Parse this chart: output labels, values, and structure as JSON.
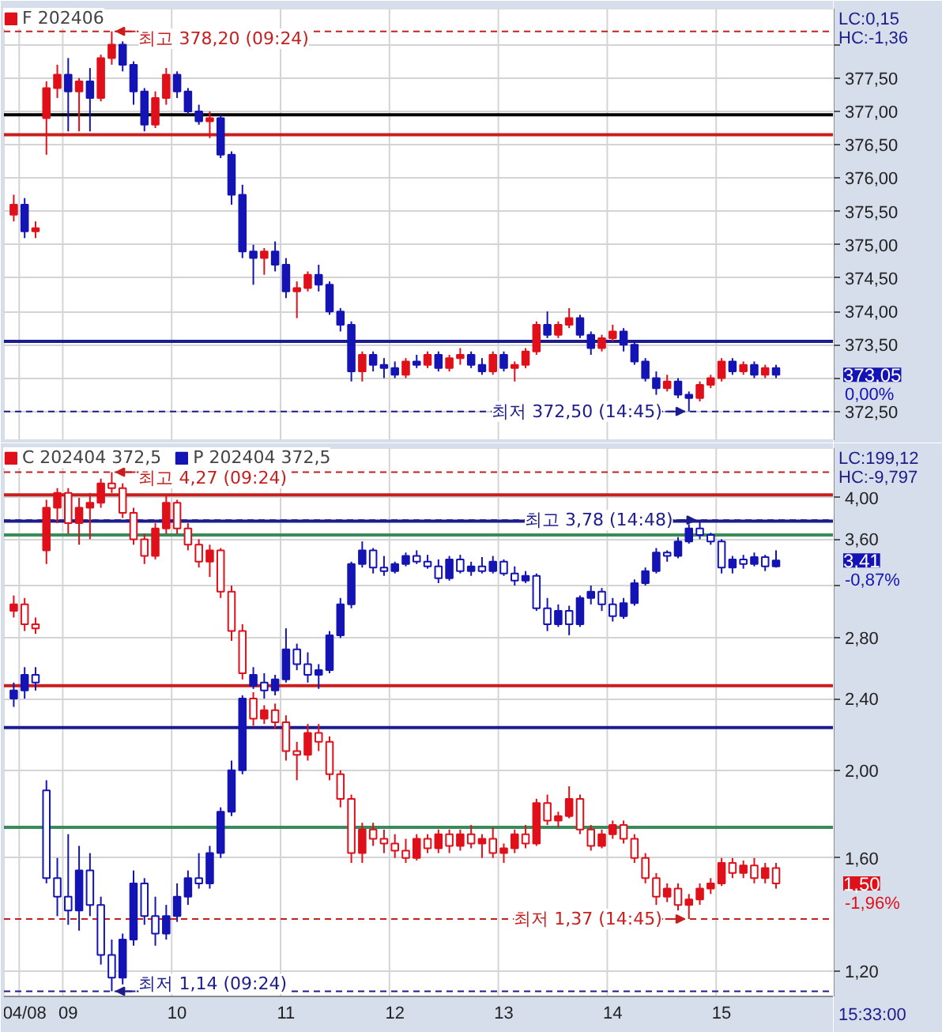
{
  "chart_data": [
    {
      "type": "candlestick",
      "legend": "top left",
      "grid": true,
      "tick_labels": "y",
      "categories": [
        null,
        null,
        null,
        null,
        null,
        null,
        null,
        null,
        null,
        null,
        null,
        null,
        null,
        null,
        null,
        null,
        null,
        null,
        null,
        null,
        null,
        null,
        null,
        null,
        null,
        null,
        null,
        null,
        null,
        null,
        null,
        null,
        null,
        null,
        null,
        null,
        null,
        null,
        null,
        null,
        null,
        null,
        null,
        null,
        null,
        null,
        null,
        null,
        null,
        null,
        null,
        null,
        null,
        null,
        null,
        null,
        null,
        null,
        null,
        null,
        null,
        null,
        null,
        null,
        null,
        null,
        null,
        null,
        null,
        null,
        null
      ],
      "ylim": [
        372.07,
        378.54
      ],
      "yticks": [
        {
          "value": 372.5,
          "label": "372,50"
        },
        {
          "value": 373.0,
          "label": null
        },
        {
          "value": 373.5,
          "label": "373,50"
        },
        {
          "value": 374.0,
          "label": "374,00"
        },
        {
          "value": 374.5,
          "label": "374,50"
        },
        {
          "value": 375.0,
          "label": "375,00"
        },
        {
          "value": 375.5,
          "label": "375,50"
        },
        {
          "value": 376.0,
          "label": "376,00"
        },
        {
          "value": 376.5,
          "label": "376,50"
        },
        {
          "value": 377.0,
          "label": "377,00"
        },
        {
          "value": 377.5,
          "label": "377,50"
        },
        {
          "value": 378.0,
          "label": null
        }
      ],
      "series": [
        {
          "name": "F 202406",
          "colors": [
            "#e0101a",
            "#1414b4",
            "#e0101a",
            "#e0101a",
            "#e0101a",
            "#1414b4",
            "#e0101a",
            "#1414b4",
            "#e0101a",
            "#e0101a",
            "#1414b4",
            "#1414b4",
            "#1414b4",
            "#e0101a",
            "#e0101a",
            "#1414b4",
            "#1414b4",
            "#1414b4",
            "#e0101a",
            "#1414b4",
            "#1414b4",
            "#1414b4",
            "#1414b4",
            "#e0101a",
            "#1414b4",
            "#1414b4",
            "#e0101a",
            "#e0101a",
            "#1414b4",
            "#1414b4",
            "#1414b4",
            "#1414b4",
            "#e0101a",
            "#1414b4",
            "#1414b4",
            "#1414b4",
            "#e0101a",
            "#1414b4",
            "#e0101a",
            "#1414b4",
            "#e0101a",
            "#e0101a",
            "#1414b4",
            "#1414b4",
            "#e0101a",
            "#1414b4",
            "#e0101a",
            "#e0101a",
            "#e0101a",
            "#1414b4",
            "#e0101a",
            "#e0101a",
            "#1414b4",
            "#1414b4",
            "#e0101a",
            "#e0101a",
            "#1414b4",
            "#1414b4",
            "#1414b4",
            "#1414b4",
            "#e0101a",
            "#1414b4",
            "#1414b4",
            "#e0101a",
            "#e0101a",
            "#e0101a",
            "#1414b4",
            "#e0101a",
            "#1414b4",
            "#e0101a",
            "#1414b4"
          ],
          "ohlc": [
            [
              375.45,
              375.75,
              375.35,
              375.6
            ],
            [
              375.6,
              375.7,
              375.1,
              375.2
            ],
            [
              375.2,
              375.35,
              375.1,
              375.25
            ],
            [
              376.9,
              377.45,
              376.35,
              377.35
            ],
            [
              377.35,
              377.7,
              377.2,
              377.55
            ],
            [
              377.55,
              377.8,
              376.7,
              377.3
            ],
            [
              377.3,
              377.5,
              376.7,
              377.45
            ],
            [
              377.45,
              377.65,
              376.7,
              377.2
            ],
            [
              377.2,
              377.85,
              377.15,
              377.8
            ],
            [
              377.8,
              378.2,
              377.7,
              378.0
            ],
            [
              378.0,
              378.05,
              377.6,
              377.7
            ],
            [
              377.7,
              377.75,
              377.1,
              377.3
            ],
            [
              377.3,
              377.35,
              376.7,
              376.8
            ],
            [
              376.8,
              377.3,
              376.75,
              377.2
            ],
            [
              377.2,
              377.65,
              377.1,
              377.55
            ],
            [
              377.55,
              377.6,
              377.2,
              377.3
            ],
            [
              377.3,
              377.35,
              376.95,
              377.0
            ],
            [
              377.0,
              377.1,
              376.8,
              376.85
            ],
            [
              376.85,
              377.0,
              376.6,
              376.9
            ],
            [
              376.9,
              376.95,
              376.3,
              376.35
            ],
            [
              376.35,
              376.4,
              375.6,
              375.75
            ],
            [
              375.75,
              375.9,
              374.8,
              374.9
            ],
            [
              374.9,
              375.0,
              374.4,
              374.8
            ],
            [
              374.8,
              374.95,
              374.55,
              374.9
            ],
            [
              374.9,
              375.05,
              374.6,
              374.7
            ],
            [
              374.7,
              374.8,
              374.2,
              374.3
            ],
            [
              374.3,
              374.45,
              373.9,
              374.35
            ],
            [
              374.35,
              374.6,
              374.3,
              374.55
            ],
            [
              374.55,
              374.7,
              374.3,
              374.4
            ],
            [
              374.4,
              374.45,
              373.95,
              374.0
            ],
            [
              374.0,
              374.05,
              373.7,
              373.8
            ],
            [
              373.8,
              373.85,
              372.95,
              373.1
            ],
            [
              373.1,
              373.4,
              372.95,
              373.35
            ],
            [
              373.35,
              373.4,
              373.1,
              373.2
            ],
            [
              373.2,
              373.3,
              373.0,
              373.15
            ],
            [
              373.15,
              373.25,
              373.0,
              373.05
            ],
            [
              373.05,
              373.3,
              373.0,
              373.25
            ],
            [
              373.25,
              373.35,
              373.15,
              373.2
            ],
            [
              373.2,
              373.4,
              373.15,
              373.35
            ],
            [
              373.35,
              373.4,
              373.1,
              373.15
            ],
            [
              373.15,
              373.35,
              373.1,
              373.3
            ],
            [
              373.3,
              373.45,
              373.2,
              373.35
            ],
            [
              373.35,
              373.4,
              373.15,
              373.2
            ],
            [
              373.2,
              373.3,
              373.05,
              373.1
            ],
            [
              373.1,
              373.4,
              373.05,
              373.35
            ],
            [
              373.35,
              373.4,
              373.1,
              373.15
            ],
            [
              373.15,
              373.25,
              372.95,
              373.2
            ],
            [
              373.2,
              373.45,
              373.15,
              373.4
            ],
            [
              373.4,
              373.85,
              373.35,
              373.8
            ],
            [
              373.8,
              374.0,
              373.6,
              373.65
            ],
            [
              373.65,
              373.85,
              373.6,
              373.8
            ],
            [
              373.8,
              374.05,
              373.75,
              373.9
            ],
            [
              373.9,
              373.95,
              373.6,
              373.65
            ],
            [
              373.65,
              373.7,
              373.35,
              373.45
            ],
            [
              373.45,
              373.65,
              373.4,
              373.6
            ],
            [
              373.6,
              373.8,
              373.55,
              373.7
            ],
            [
              373.7,
              373.75,
              373.4,
              373.5
            ],
            [
              373.5,
              373.55,
              373.2,
              373.25
            ],
            [
              373.25,
              373.3,
              372.95,
              373.0
            ],
            [
              373.0,
              373.1,
              372.75,
              372.85
            ],
            [
              372.85,
              373.05,
              372.8,
              372.95
            ],
            [
              372.95,
              373.0,
              372.7,
              372.75
            ],
            [
              372.75,
              372.8,
              372.5,
              372.7
            ],
            [
              372.7,
              372.95,
              372.65,
              372.9
            ],
            [
              372.9,
              373.05,
              372.85,
              373.0
            ],
            [
              373.0,
              373.3,
              372.95,
              373.25
            ],
            [
              373.25,
              373.3,
              373.05,
              373.1
            ],
            [
              373.1,
              373.25,
              373.05,
              373.2
            ],
            [
              373.2,
              373.25,
              373.0,
              373.05
            ],
            [
              373.05,
              373.2,
              373.0,
              373.15
            ],
            [
              373.15,
              373.2,
              373.0,
              373.05
            ]
          ]
        }
      ],
      "ref_lines": [
        {
          "axis": "y",
          "value": 378.2,
          "color": "#c81e1e",
          "line_style": "dashed"
        },
        {
          "axis": "y",
          "value": 372.5,
          "color": "#1c1c8c",
          "line_style": "dashed"
        },
        {
          "axis": "y",
          "value": 376.95,
          "color": "#000000"
        },
        {
          "axis": "y",
          "value": 376.65,
          "color": "#c81e1e"
        },
        {
          "axis": "y",
          "value": 373.55,
          "color": "#1c1c8c"
        }
      ],
      "annotations": [
        "LC:0,15",
        "HC:-1,36",
        "373,05",
        "0,00%",
        {
          "text": "최고 378,20 (09:24)",
          "y": 378.2
        },
        {
          "text": "최저 372,50 (14:45)",
          "y": 372.5
        }
      ]
    },
    {
      "type": "candlestick",
      "legend": "top left",
      "grid": true,
      "log": "y",
      "categories": [
        null,
        "04/08",
        null,
        null,
        null,
        "09",
        null,
        null,
        null,
        null,
        null,
        null,
        null,
        null,
        null,
        "10",
        null,
        null,
        null,
        null,
        null,
        null,
        null,
        null,
        null,
        "11",
        null,
        null,
        null,
        null,
        null,
        null,
        null,
        null,
        null,
        "12",
        null,
        null,
        null,
        null,
        null,
        null,
        null,
        null,
        null,
        "13",
        null,
        null,
        null,
        null,
        null,
        null,
        null,
        null,
        null,
        "14",
        null,
        null,
        null,
        null,
        null,
        null,
        null,
        null,
        null,
        "15",
        null,
        null,
        null,
        null,
        null
      ],
      "ylim": [
        1.125,
        4.54
      ],
      "yticks": [
        {
          "value": 1.2,
          "label": "1,20"
        },
        {
          "value": 1.6,
          "label": "1,60"
        },
        {
          "value": 2.0,
          "label": "2,00"
        },
        {
          "value": 2.4,
          "label": "2,40"
        },
        {
          "value": 2.8,
          "label": "2,80"
        },
        {
          "value": 3.2,
          "label": null
        },
        {
          "value": 3.6,
          "label": "3,60"
        },
        {
          "value": 4.0,
          "label": "4,00"
        }
      ],
      "series": [
        {
          "name": "C 202404 372,5",
          "color": "#e0101a",
          "ohlc": [
            [
              3.0,
              3.12,
              2.95,
              3.05
            ],
            [
              3.05,
              3.1,
              2.85,
              2.9
            ],
            [
              2.9,
              2.95,
              2.83,
              2.87
            ],
            [
              3.5,
              3.98,
              3.38,
              3.9
            ],
            [
              3.9,
              4.1,
              3.75,
              4.05
            ],
            [
              4.05,
              4.1,
              3.65,
              3.75
            ],
            [
              3.75,
              4.0,
              3.55,
              3.9
            ],
            [
              3.9,
              4.05,
              3.6,
              3.95
            ],
            [
              3.95,
              4.2,
              3.9,
              4.15
            ],
            [
              4.15,
              4.27,
              4.05,
              4.1
            ],
            [
              4.1,
              4.15,
              3.8,
              3.85
            ],
            [
              3.85,
              3.9,
              3.55,
              3.6
            ],
            [
              3.6,
              3.65,
              3.38,
              3.45
            ],
            [
              3.45,
              3.75,
              3.42,
              3.7
            ],
            [
              3.7,
              4.02,
              3.65,
              3.95
            ],
            [
              3.95,
              3.98,
              3.65,
              3.7
            ],
            [
              3.7,
              3.75,
              3.5,
              3.55
            ],
            [
              3.55,
              3.6,
              3.35,
              3.4
            ],
            [
              3.4,
              3.55,
              3.27,
              3.5
            ],
            [
              3.5,
              3.52,
              3.1,
              3.15
            ],
            [
              3.15,
              3.2,
              2.78,
              2.85
            ],
            [
              2.85,
              2.9,
              2.52,
              2.56
            ],
            [
              2.4,
              2.44,
              2.24,
              2.28
            ],
            [
              2.28,
              2.36,
              2.25,
              2.33
            ],
            [
              2.33,
              2.37,
              2.22,
              2.26
            ],
            [
              2.26,
              2.3,
              2.05,
              2.1
            ],
            [
              2.1,
              2.15,
              1.95,
              2.08
            ],
            [
              2.08,
              2.25,
              2.05,
              2.2
            ],
            [
              2.2,
              2.25,
              2.1,
              2.15
            ],
            [
              2.15,
              2.18,
              1.95,
              1.98
            ],
            [
              1.98,
              2.0,
              1.82,
              1.86
            ],
            [
              1.86,
              1.88,
              1.58,
              1.62
            ],
            [
              1.62,
              1.75,
              1.58,
              1.72
            ],
            [
              1.72,
              1.75,
              1.65,
              1.68
            ],
            [
              1.68,
              1.72,
              1.62,
              1.66
            ],
            [
              1.66,
              1.7,
              1.6,
              1.63
            ],
            [
              1.63,
              1.68,
              1.58,
              1.6
            ],
            [
              1.6,
              1.7,
              1.59,
              1.68
            ],
            [
              1.68,
              1.7,
              1.62,
              1.64
            ],
            [
              1.64,
              1.72,
              1.62,
              1.7
            ],
            [
              1.7,
              1.72,
              1.62,
              1.65
            ],
            [
              1.65,
              1.72,
              1.63,
              1.7
            ],
            [
              1.7,
              1.74,
              1.64,
              1.66
            ],
            [
              1.66,
              1.7,
              1.6,
              1.68
            ],
            [
              1.68,
              1.73,
              1.6,
              1.62
            ],
            [
              1.62,
              1.66,
              1.58,
              1.64
            ],
            [
              1.64,
              1.72,
              1.62,
              1.7
            ],
            [
              1.7,
              1.74,
              1.64,
              1.66
            ],
            [
              1.66,
              1.86,
              1.65,
              1.84
            ],
            [
              1.84,
              1.88,
              1.74,
              1.76
            ],
            [
              1.76,
              1.8,
              1.73,
              1.78
            ],
            [
              1.78,
              1.92,
              1.77,
              1.86
            ],
            [
              1.86,
              1.88,
              1.7,
              1.72
            ],
            [
              1.72,
              1.74,
              1.63,
              1.65
            ],
            [
              1.65,
              1.72,
              1.64,
              1.7
            ],
            [
              1.7,
              1.76,
              1.68,
              1.74
            ],
            [
              1.74,
              1.76,
              1.66,
              1.68
            ],
            [
              1.68,
              1.7,
              1.58,
              1.6
            ],
            [
              1.6,
              1.62,
              1.5,
              1.52
            ],
            [
              1.52,
              1.54,
              1.42,
              1.45
            ],
            [
              1.45,
              1.5,
              1.43,
              1.48
            ],
            [
              1.48,
              1.5,
              1.4,
              1.42
            ],
            [
              1.42,
              1.46,
              1.37,
              1.44
            ],
            [
              1.44,
              1.5,
              1.42,
              1.48
            ],
            [
              1.48,
              1.52,
              1.46,
              1.5
            ],
            [
              1.5,
              1.6,
              1.49,
              1.58
            ],
            [
              1.58,
              1.6,
              1.52,
              1.54
            ],
            [
              1.54,
              1.59,
              1.52,
              1.57
            ],
            [
              1.57,
              1.6,
              1.5,
              1.52
            ],
            [
              1.52,
              1.58,
              1.5,
              1.56
            ],
            [
              1.56,
              1.58,
              1.48,
              1.5
            ]
          ]
        },
        {
          "name": "P 202404 372,5",
          "color": "#1414b4",
          "ohlc": [
            [
              2.4,
              2.5,
              2.35,
              2.45
            ],
            [
              2.45,
              2.6,
              2.4,
              2.55
            ],
            [
              2.55,
              2.6,
              2.45,
              2.5
            ],
            [
              1.9,
              1.95,
              1.5,
              1.52
            ],
            [
              1.52,
              1.6,
              1.38,
              1.45
            ],
            [
              1.45,
              1.7,
              1.35,
              1.4
            ],
            [
              1.4,
              1.65,
              1.33,
              1.55
            ],
            [
              1.55,
              1.62,
              1.38,
              1.42
            ],
            [
              1.42,
              1.45,
              1.22,
              1.25
            ],
            [
              1.25,
              1.3,
              1.14,
              1.18
            ],
            [
              1.18,
              1.32,
              1.16,
              1.3
            ],
            [
              1.3,
              1.55,
              1.28,
              1.5
            ],
            [
              1.5,
              1.52,
              1.35,
              1.38
            ],
            [
              1.38,
              1.45,
              1.28,
              1.32
            ],
            [
              1.32,
              1.42,
              1.3,
              1.38
            ],
            [
              1.38,
              1.5,
              1.36,
              1.45
            ],
            [
              1.45,
              1.55,
              1.42,
              1.52
            ],
            [
              1.52,
              1.62,
              1.48,
              1.5
            ],
            [
              1.5,
              1.65,
              1.48,
              1.62
            ],
            [
              1.62,
              1.82,
              1.6,
              1.8
            ],
            [
              1.8,
              2.05,
              1.78,
              2.0
            ],
            [
              2.0,
              2.42,
              1.98,
              2.4
            ],
            [
              2.48,
              2.6,
              2.46,
              2.55
            ],
            [
              2.5,
              2.56,
              2.4,
              2.45
            ],
            [
              2.45,
              2.55,
              2.42,
              2.52
            ],
            [
              2.52,
              2.87,
              2.5,
              2.72
            ],
            [
              2.72,
              2.76,
              2.58,
              2.62
            ],
            [
              2.62,
              2.7,
              2.5,
              2.55
            ],
            [
              2.55,
              2.62,
              2.46,
              2.58
            ],
            [
              2.58,
              2.85,
              2.56,
              2.82
            ],
            [
              2.82,
              3.1,
              2.8,
              3.05
            ],
            [
              3.05,
              3.4,
              3.02,
              3.38
            ],
            [
              3.38,
              3.58,
              3.35,
              3.5
            ],
            [
              3.5,
              3.52,
              3.3,
              3.35
            ],
            [
              3.35,
              3.45,
              3.28,
              3.32
            ],
            [
              3.32,
              3.4,
              3.3,
              3.38
            ],
            [
              3.38,
              3.48,
              3.36,
              3.45
            ],
            [
              3.45,
              3.5,
              3.38,
              3.4
            ],
            [
              3.4,
              3.46,
              3.34,
              3.36
            ],
            [
              3.36,
              3.42,
              3.22,
              3.26
            ],
            [
              3.26,
              3.45,
              3.24,
              3.42
            ],
            [
              3.42,
              3.46,
              3.3,
              3.32
            ],
            [
              3.32,
              3.4,
              3.28,
              3.36
            ],
            [
              3.36,
              3.44,
              3.3,
              3.32
            ],
            [
              3.32,
              3.45,
              3.3,
              3.4
            ],
            [
              3.4,
              3.42,
              3.28,
              3.3
            ],
            [
              3.3,
              3.36,
              3.2,
              3.24
            ],
            [
              3.24,
              3.32,
              3.22,
              3.28
            ],
            [
              3.28,
              3.3,
              3.0,
              3.02
            ],
            [
              3.02,
              3.1,
              2.85,
              2.9
            ],
            [
              2.9,
              3.05,
              2.88,
              3.0
            ],
            [
              3.0,
              3.04,
              2.82,
              2.9
            ],
            [
              2.9,
              3.12,
              2.88,
              3.1
            ],
            [
              3.1,
              3.2,
              3.05,
              3.15
            ],
            [
              3.15,
              3.18,
              3.0,
              3.05
            ],
            [
              3.05,
              3.1,
              2.92,
              2.96
            ],
            [
              2.96,
              3.1,
              2.94,
              3.06
            ],
            [
              3.06,
              3.25,
              3.04,
              3.22
            ],
            [
              3.22,
              3.35,
              3.2,
              3.32
            ],
            [
              3.32,
              3.52,
              3.3,
              3.48
            ],
            [
              3.48,
              3.5,
              3.4,
              3.45
            ],
            [
              3.45,
              3.62,
              3.43,
              3.58
            ],
            [
              3.58,
              3.74,
              3.56,
              3.7
            ],
            [
              3.7,
              3.78,
              3.6,
              3.64
            ],
            [
              3.64,
              3.66,
              3.55,
              3.58
            ],
            [
              3.58,
              3.6,
              3.3,
              3.35
            ],
            [
              3.35,
              3.45,
              3.3,
              3.42
            ],
            [
              3.42,
              3.46,
              3.34,
              3.38
            ],
            [
              3.38,
              3.48,
              3.36,
              3.44
            ],
            [
              3.44,
              3.46,
              3.32,
              3.36
            ],
            [
              3.36,
              3.5,
              3.35,
              3.41
            ]
          ]
        }
      ],
      "ref_lines": [
        {
          "axis": "y",
          "value": 4.27,
          "color": "#c81e1e",
          "line_style": "dashed"
        },
        {
          "axis": "y",
          "value": 4.03,
          "color": "#c81e1e"
        },
        {
          "axis": "y",
          "value": 3.78,
          "color": "#1c1c8c",
          "line_style": "dashed"
        },
        {
          "axis": "y",
          "value": 3.77,
          "color": "#1c1c8c"
        },
        {
          "axis": "y",
          "value": 3.64,
          "color": "#3a8a5a"
        },
        {
          "axis": "y",
          "value": 2.48,
          "color": "#c81e1e"
        },
        {
          "axis": "y",
          "value": 2.23,
          "color": "#1c1c8c"
        },
        {
          "axis": "y",
          "value": 1.73,
          "color": "#3a8a5a"
        },
        {
          "axis": "y",
          "value": 1.37,
          "color": "#c81e1e",
          "line_style": "dashed"
        },
        {
          "axis": "y",
          "value": 1.14,
          "color": "#1c1c8c",
          "line_style": "dashed"
        }
      ],
      "annotations": [
        "LC:199,12",
        "HC:-9,797",
        "1,50",
        "-1,96%",
        "3,41",
        "-0,87%",
        "15:33:00",
        {
          "text": "최고 4,27 (09:24)",
          "y": 4.27
        },
        {
          "text": "최저 1,14 (09:24)",
          "y": 1.14
        },
        {
          "text": "최고 3,78 (14:48)",
          "y": 3.78
        },
        {
          "text": "최저 1,37 (14:45)",
          "y": 1.37
        }
      ]
    }
  ]
}
